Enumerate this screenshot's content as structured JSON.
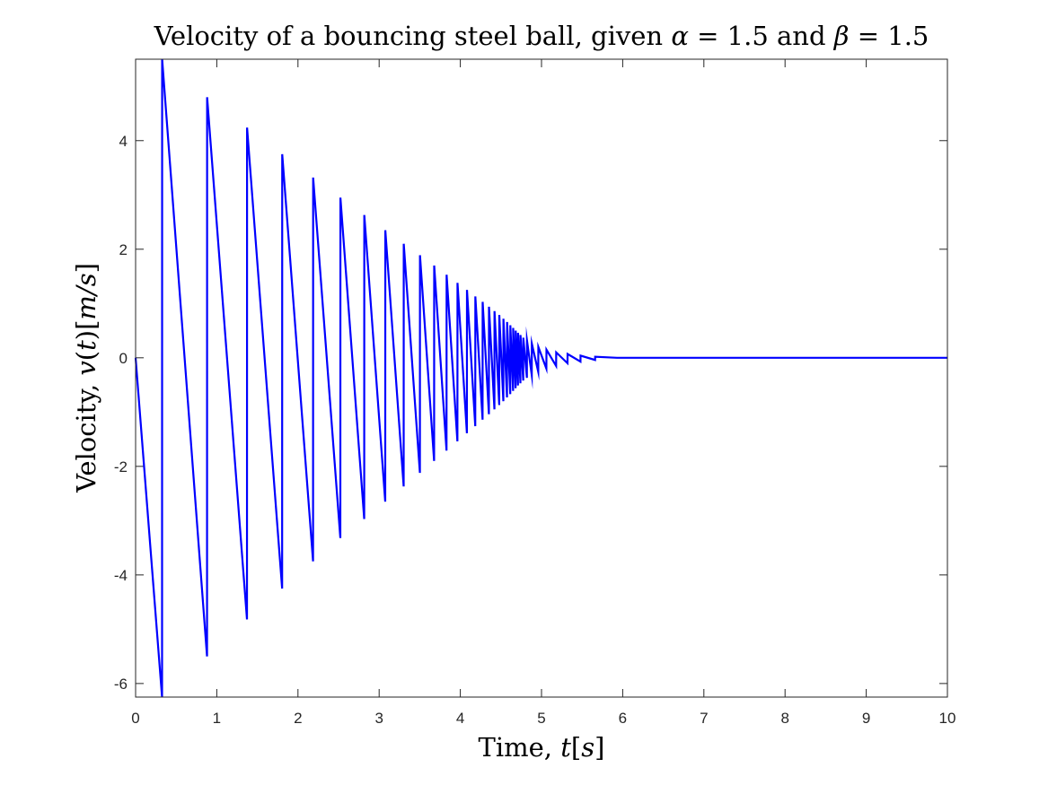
{
  "chart_data": {
    "type": "line",
    "title": "Velocity of a bouncing steel ball, given α = 1.5 and β = 1.5",
    "title_parts": {
      "text1": "Velocity of a bouncing steel ball, given ",
      "sym1": "α",
      "text2": " = 1.5 and ",
      "sym2": "β",
      "text3": " = 1.5"
    },
    "xlabel": "Time, t[s]",
    "xlabel_parts": {
      "text": "Time, ",
      "var": "t",
      "unit_open": "[",
      "unit": "s",
      "unit_close": "]"
    },
    "ylabel": "Velocity, v(t)[m/s]",
    "ylabel_parts": {
      "text": "Velocity, ",
      "var": "v",
      "paren_open": "(",
      "arg": "t",
      "paren_close": ")",
      "unit_open": "[",
      "unit": "m/s",
      "unit_close": "]"
    },
    "xlim": [
      0,
      10
    ],
    "ylim": [
      -6.25,
      5.5
    ],
    "xticks": [
      0,
      1,
      2,
      3,
      4,
      5,
      6,
      7,
      8,
      9,
      10
    ],
    "yticks": [
      -6,
      -4,
      -2,
      0,
      2,
      4
    ],
    "xtick_labels": [
      "0",
      "1",
      "2",
      "3",
      "4",
      "5",
      "6",
      "7",
      "8",
      "9",
      "10"
    ],
    "ytick_labels": [
      "-6",
      "-4",
      "-2",
      "0",
      "2",
      "4"
    ],
    "grid": false,
    "series": [
      {
        "color": "#0000ff",
        "x": [
          0,
          0.326,
          0.327,
          0.88,
          0.881,
          1.372,
          1.373,
          1.805,
          1.806,
          2.186,
          2.187,
          2.522,
          2.523,
          2.816,
          2.817,
          3.075,
          3.076,
          3.302,
          3.303,
          3.502,
          3.503,
          3.677,
          3.678,
          3.83,
          3.831,
          3.964,
          3.965,
          4.081,
          4.082,
          4.184,
          4.185,
          4.274,
          4.275,
          4.352,
          4.353,
          4.42,
          4.421,
          4.479,
          4.48,
          4.53,
          4.531,
          4.575,
          4.576,
          4.615,
          4.616,
          4.65,
          4.651,
          4.681,
          4.682,
          4.71,
          4.711,
          4.74,
          4.741,
          4.775,
          4.776,
          4.82,
          4.821,
          4.88,
          4.881,
          4.96,
          4.961,
          5.06,
          5.061,
          5.18,
          5.181,
          5.32,
          5.321,
          5.48,
          5.481,
          5.66,
          5.661,
          5.93,
          10
        ],
        "y": [
          0,
          -6.25,
          5.5,
          -5.5,
          4.8,
          -4.82,
          4.24,
          -4.25,
          3.75,
          -3.75,
          3.32,
          -3.32,
          2.95,
          -2.97,
          2.63,
          -2.65,
          2.35,
          -2.37,
          2.1,
          -2.12,
          1.89,
          -1.9,
          1.7,
          -1.71,
          1.53,
          -1.54,
          1.38,
          -1.39,
          1.25,
          -1.26,
          1.13,
          -1.14,
          1.03,
          -1.04,
          0.94,
          -0.95,
          0.86,
          -0.87,
          0.79,
          -0.8,
          0.72,
          -0.73,
          0.66,
          -0.67,
          0.6,
          -0.61,
          0.55,
          -0.56,
          0.5,
          -0.51,
          0.46,
          -0.47,
          0.42,
          -0.42,
          0.37,
          -0.37,
          0.32,
          -0.32,
          0.26,
          -0.26,
          0.2,
          -0.2,
          0.15,
          -0.15,
          0.1,
          -0.1,
          0.07,
          -0.07,
          0.04,
          -0.04,
          0.02,
          0,
          0
        ]
      }
    ]
  }
}
